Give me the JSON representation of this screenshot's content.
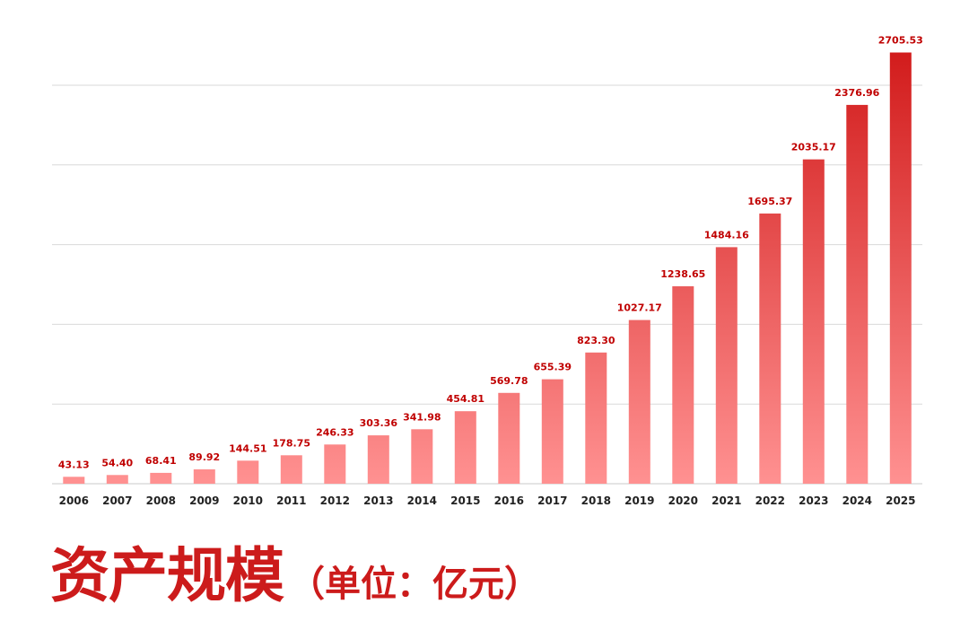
{
  "chart_data": {
    "type": "bar",
    "title": "资产规模",
    "unit_label": "（单位：亿元）",
    "categories": [
      "2006",
      "2007",
      "2008",
      "2009",
      "2010",
      "2011",
      "2012",
      "2013",
      "2014",
      "2015",
      "2016",
      "2017",
      "2018",
      "2019",
      "2020",
      "2021",
      "2022",
      "2023",
      "2024",
      "2025"
    ],
    "values": [
      43.13,
      54.4,
      68.41,
      89.92,
      144.51,
      178.75,
      246.33,
      303.36,
      341.98,
      454.81,
      569.78,
      655.39,
      823.3,
      1027.17,
      1238.65,
      1484.16,
      1695.37,
      2035.17,
      2376.96,
      2705.53
    ],
    "value_labels": [
      "43.13",
      "54.40",
      "68.41",
      "89.92",
      "144.51",
      "178.75",
      "246.33",
      "303.36",
      "341.98",
      "454.81",
      "569.78",
      "655.39",
      "823.30",
      "1027.17",
      "1238.65",
      "1484.16",
      "1695.37",
      "2035.17",
      "2376.96",
      "2705.53"
    ],
    "ylim": [
      0,
      2500
    ],
    "gridlines": [
      500,
      1000,
      1500,
      2000,
      2500
    ],
    "grid": true,
    "legend": "none",
    "colors": {
      "bar_light": "#ff9191",
      "bar_dark": "#d21c1c",
      "value_label": "#c00000",
      "title": "#cc1b1b"
    }
  }
}
